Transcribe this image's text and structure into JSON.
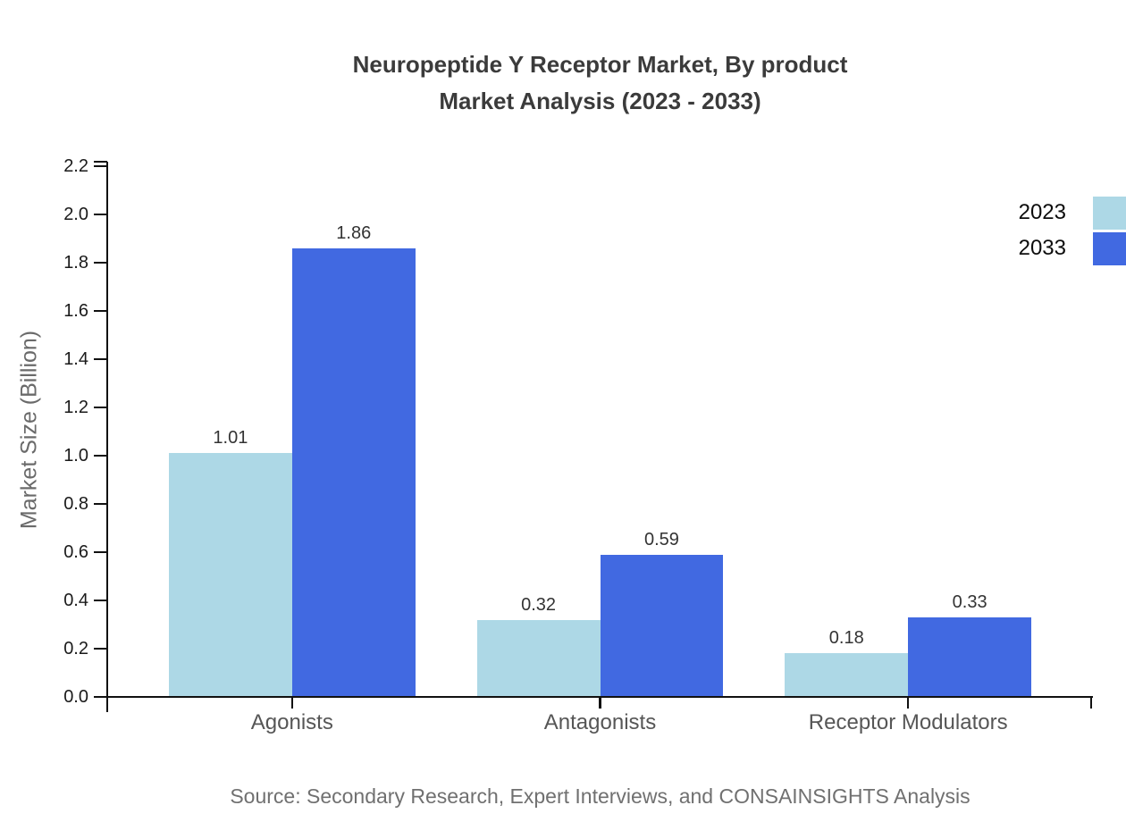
{
  "title": {
    "line1": "Neuropeptide Y Receptor Market, By product",
    "line2": "Market Analysis (2023 - 2033)"
  },
  "source": "Source: Secondary Research, Expert Interviews, and CONSAINSIGHTS Analysis",
  "chart_data": {
    "type": "bar",
    "title": "Neuropeptide Y Receptor Market, By product Market Analysis (2023 - 2033)",
    "categories": [
      "Agonists",
      "Antagonists",
      "Receptor Modulators"
    ],
    "series": [
      {
        "name": "2023",
        "color": "#ADD8E6",
        "values": [
          1.01,
          0.32,
          0.18
        ]
      },
      {
        "name": "2033",
        "color": "#4169E1",
        "values": [
          1.86,
          0.59,
          0.33
        ]
      }
    ],
    "xlabel": "",
    "ylabel": "Market Size (Billion)",
    "ylim": [
      0.0,
      2.2
    ],
    "ytick_step": 0.2,
    "grid": false,
    "legend_position": "top-right",
    "value_label_decimals": 2
  },
  "colors": {
    "series_2023": "#ADD8E6",
    "series_2033": "#4169E1",
    "title_text": "#3B3B3B",
    "axis_line": "#111111",
    "tick_label": "#1A1A1A",
    "category_label": "#565656",
    "value_label": "#333333",
    "axis_title_text": "#6A6A6A",
    "source_text": "#707070",
    "background": "#FFFFFF"
  }
}
